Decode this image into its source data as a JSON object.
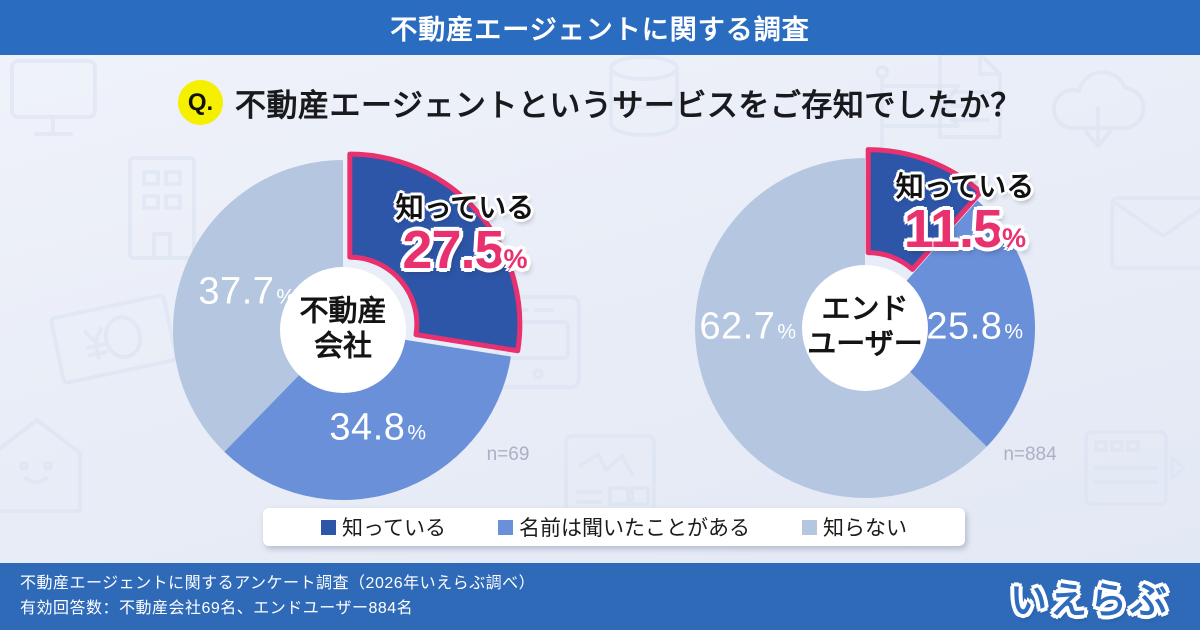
{
  "header": {
    "title": "不動産エージェントに関する調査"
  },
  "question": {
    "badge": "Q.",
    "text": "不動産エージェントというサービスをご存知でしたか？"
  },
  "ui": {
    "percent_sign": "%"
  },
  "chart_data": [
    {
      "type": "pie",
      "group": "不動産会社",
      "center_lines": [
        "不動産",
        "会社"
      ],
      "categories": [
        "知っている",
        "名前は聞いたことがある",
        "知らない"
      ],
      "values": [
        27.5,
        34.8,
        37.7
      ],
      "value_labels": [
        "27.5",
        "34.8",
        "37.7"
      ],
      "colors": [
        "#2d55a8",
        "#6b90da",
        "#b5c6e1"
      ],
      "highlight_index": 0,
      "highlight_label": "知っている",
      "accent": "#e8316e",
      "n_label": "n=69",
      "start_angle": "12-oclock",
      "direction": "clockwise",
      "donut_hole": true
    },
    {
      "type": "pie",
      "group": "エンドユーザー",
      "center_lines": [
        "エンド",
        "ユーザー"
      ],
      "categories": [
        "知っている",
        "名前は聞いたことがある",
        "知らない"
      ],
      "values": [
        11.5,
        25.8,
        62.7
      ],
      "value_labels": [
        "11.5",
        "25.8",
        "62.7"
      ],
      "colors": [
        "#2d55a8",
        "#6b90da",
        "#b5c6e1"
      ],
      "highlight_index": 0,
      "highlight_label": "知っている",
      "accent": "#e8316e",
      "n_label": "n=884",
      "start_angle": "12-oclock",
      "direction": "clockwise",
      "donut_hole": true
    }
  ],
  "legend": {
    "items": [
      {
        "label": "知っている",
        "color": "#2d55a8"
      },
      {
        "label": "名前は聞いたことがある",
        "color": "#6b90da"
      },
      {
        "label": "知らない",
        "color": "#b5c6e1"
      }
    ]
  },
  "footer": {
    "line1": "不動産エージェントに関するアンケート調査（2026年いえらぶ調べ）",
    "line2": "有効回答数：不動産会社69名、エンドユーザー884名",
    "logo": "いえらぶ"
  }
}
